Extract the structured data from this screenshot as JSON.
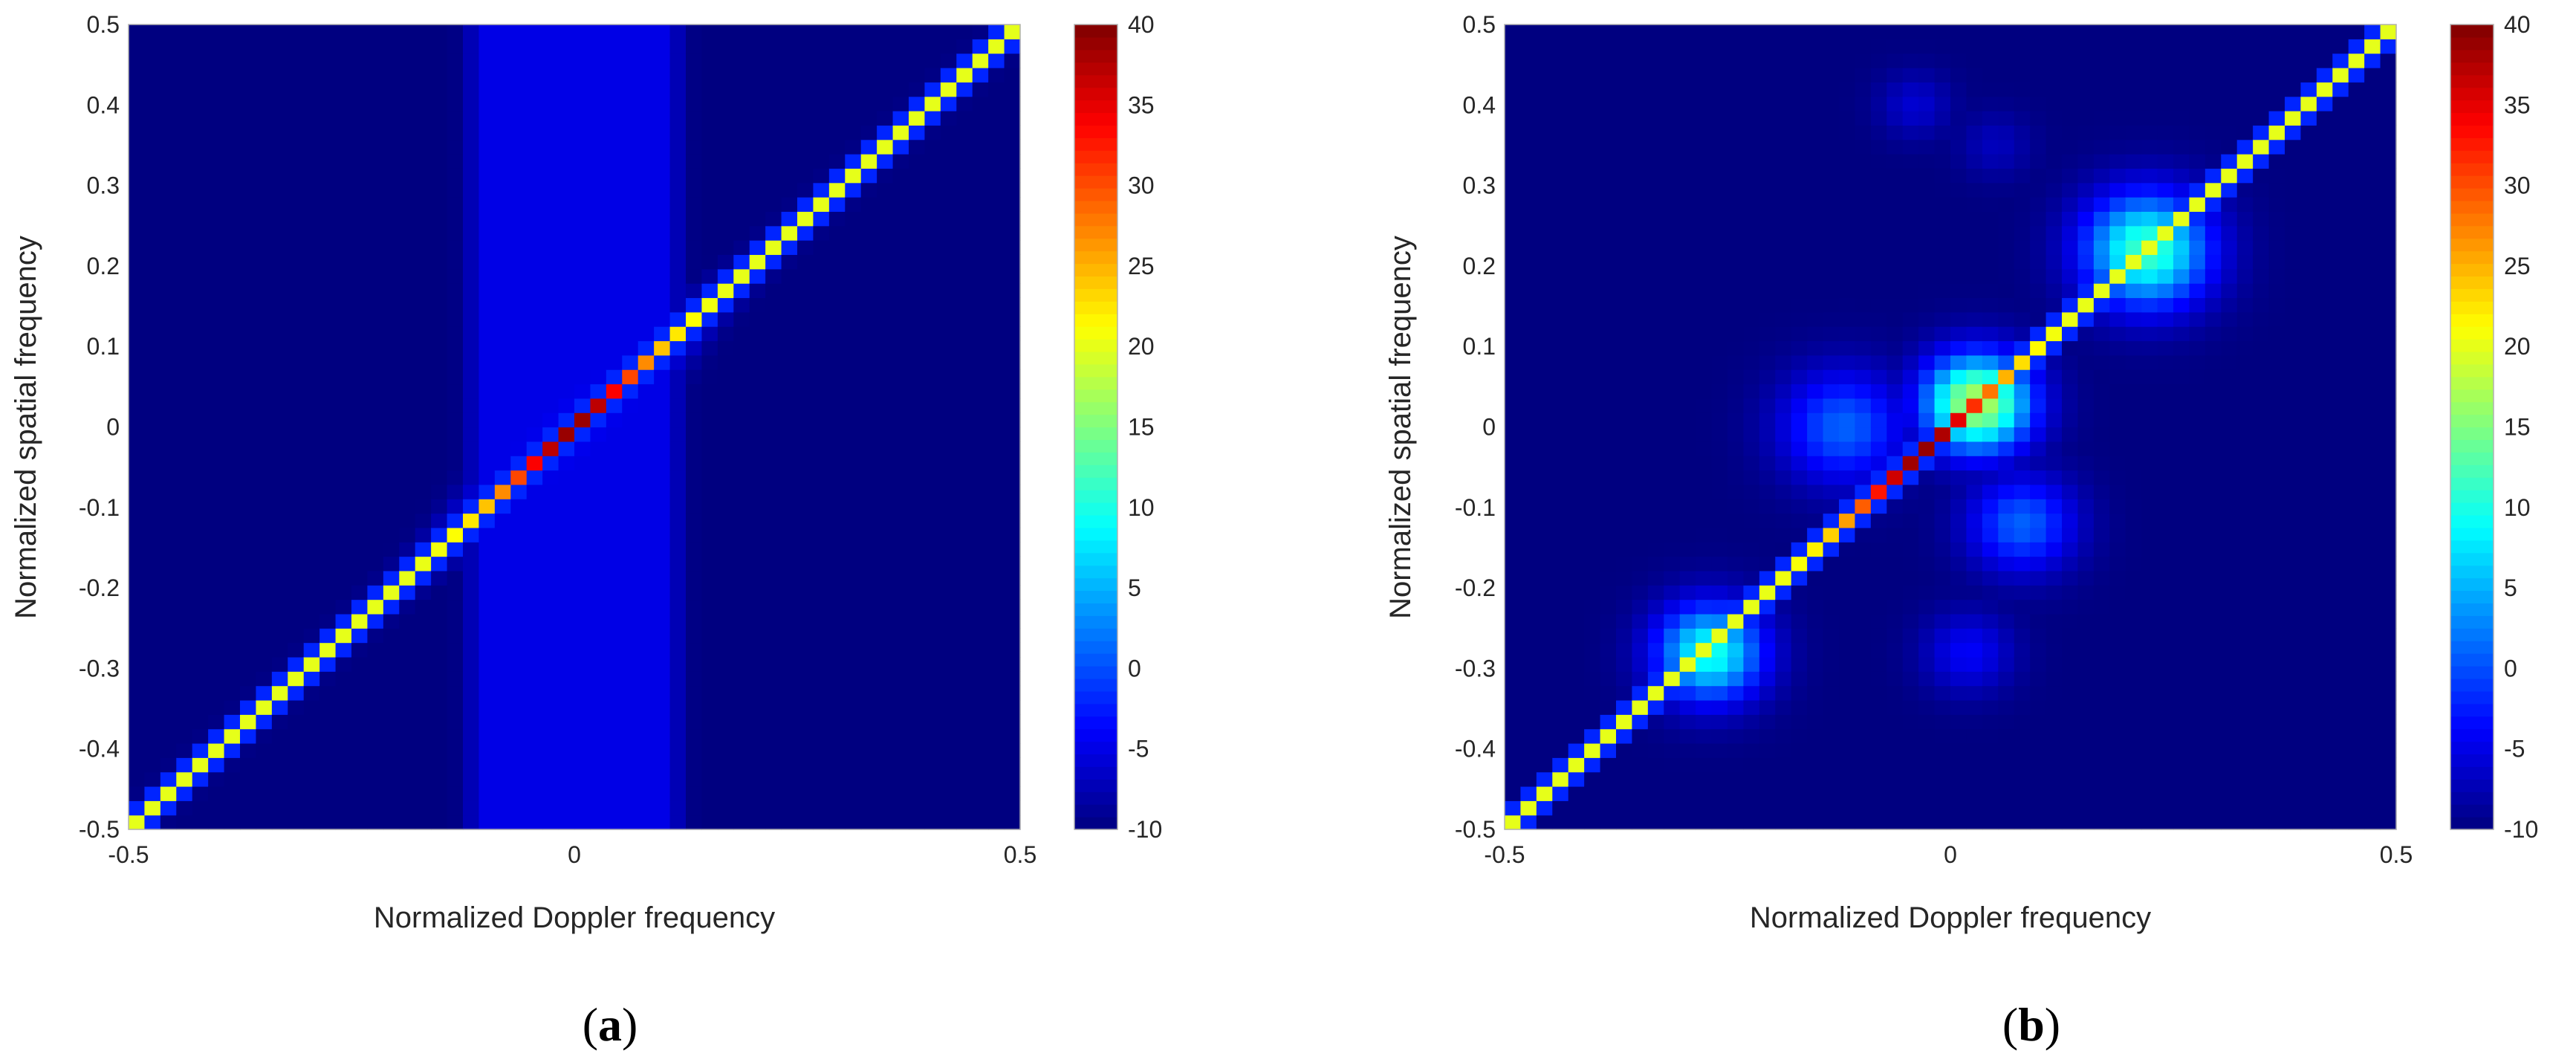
{
  "chart_data": [
    {
      "type": "heatmap",
      "panel_label": "a",
      "xlabel": "Normalized Doppler frequency",
      "ylabel": "Normalized spatial frequency",
      "xlim": [
        -0.5,
        0.5
      ],
      "ylim": [
        -0.5,
        0.5
      ],
      "xticks": [
        "-0.5",
        "0",
        "0.5"
      ],
      "yticks": [
        "0.5",
        "0.4",
        "0.3",
        "0.2",
        "0.1",
        "0",
        "-0.1",
        "-0.2",
        "-0.3",
        "-0.4",
        "-0.5"
      ],
      "colorbar": {
        "min": -10,
        "max": 40,
        "colormap": "jet",
        "ticks": [
          "40",
          "35",
          "30",
          "25",
          "20",
          "15",
          "10",
          "5",
          "0",
          "-5",
          "-10"
        ]
      },
      "grid_size": 56,
      "background_value": -10,
      "features": {
        "diagonal_ridge": {
          "from": [
            -0.5,
            -0.5
          ],
          "to": [
            0.5,
            0.5
          ],
          "edge_value": 20,
          "peak_value": 39,
          "peak_at": 0.0
        },
        "vertical_band": {
          "x_center": 0.0,
          "half_width": 0.1,
          "value": -5
        },
        "diagonal_halo": {
          "value": -3,
          "strongest_near": 0.0
        }
      }
    },
    {
      "type": "heatmap",
      "panel_label": "b",
      "xlabel": "Normalized Doppler frequency",
      "ylabel": "Normalized spatial frequency",
      "xlim": [
        -0.5,
        0.5
      ],
      "ylim": [
        -0.5,
        0.5
      ],
      "xticks": [
        "-0.5",
        "0",
        "0.5"
      ],
      "yticks": [
        "0.5",
        "0.4",
        "0.3",
        "0.2",
        "0.1",
        "0",
        "-0.1",
        "-0.2",
        "-0.3",
        "-0.4",
        "-0.5"
      ],
      "colorbar": {
        "min": -10,
        "max": 40,
        "colormap": "jet",
        "ticks": [
          "40",
          "35",
          "30",
          "25",
          "20",
          "15",
          "10",
          "5",
          "0",
          "-5",
          "-10"
        ]
      },
      "grid_size": 56,
      "background_value": -10,
      "features": {
        "diagonal_ridge": {
          "from": [
            -0.5,
            -0.5
          ],
          "to": [
            0.5,
            0.5
          ],
          "edge_value": 20,
          "peak_value": 39,
          "peak_at": -0.03
        },
        "blobs": [
          {
            "x": 0.03,
            "y": 0.03,
            "value": 18,
            "spread": 0.06
          },
          {
            "x": 0.22,
            "y": 0.22,
            "value": 12,
            "spread": 0.07
          },
          {
            "x": -0.27,
            "y": -0.28,
            "value": 10,
            "spread": 0.06
          },
          {
            "x": -0.12,
            "y": 0.0,
            "value": 1,
            "spread": 0.07
          },
          {
            "x": 0.08,
            "y": -0.12,
            "value": 1,
            "spread": 0.06
          },
          {
            "x": 0.02,
            "y": -0.28,
            "value": -4,
            "spread": 0.05
          },
          {
            "x": -0.04,
            "y": 0.4,
            "value": -6,
            "spread": 0.04
          },
          {
            "x": 0.05,
            "y": 0.35,
            "value": -7,
            "spread": 0.04
          }
        ]
      }
    }
  ]
}
